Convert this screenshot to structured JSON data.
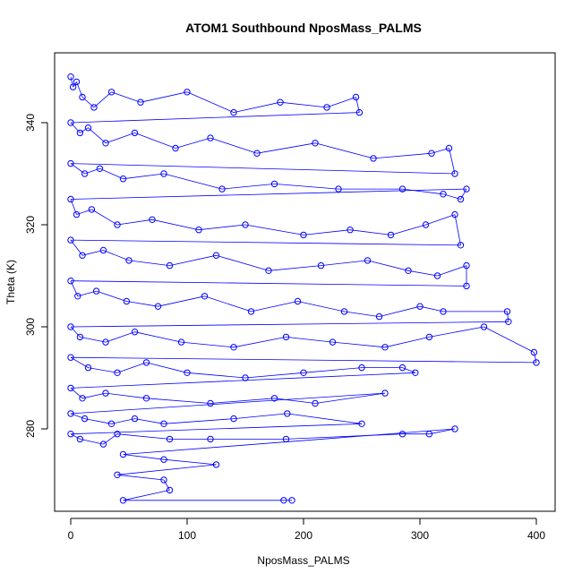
{
  "chart_data": {
    "type": "scatter",
    "title": "ATOM1 Southbound NposMass_PALMS",
    "xlabel": "NposMass_PALMS",
    "ylabel": "Theta (K)",
    "xlim": [
      -10,
      410
    ],
    "ylim": [
      262,
      352
    ],
    "xticks": [
      0,
      100,
      200,
      300,
      400
    ],
    "yticks": [
      280,
      300,
      320,
      340
    ],
    "point_style": "open-circle-with-connecting-lines",
    "color": "#0000ff",
    "series": [
      {
        "values_xy": [
          [
            0,
            349
          ],
          [
            2,
            347
          ],
          [
            5,
            348
          ],
          [
            10,
            345
          ],
          [
            20,
            343
          ],
          [
            35,
            346
          ],
          [
            60,
            344
          ],
          [
            100,
            346
          ],
          [
            140,
            342
          ],
          [
            180,
            344
          ],
          [
            220,
            343
          ],
          [
            245,
            345
          ],
          [
            248,
            342
          ],
          [
            0,
            340
          ],
          [
            8,
            338
          ],
          [
            15,
            339
          ],
          [
            30,
            336
          ],
          [
            55,
            338
          ],
          [
            90,
            335
          ],
          [
            120,
            337
          ],
          [
            160,
            334
          ],
          [
            210,
            336
          ],
          [
            260,
            333
          ],
          [
            310,
            334
          ],
          [
            325,
            335
          ],
          [
            330,
            330
          ],
          [
            0,
            332
          ],
          [
            12,
            330
          ],
          [
            25,
            331
          ],
          [
            45,
            329
          ],
          [
            80,
            330
          ],
          [
            130,
            327
          ],
          [
            175,
            328
          ],
          [
            230,
            327
          ],
          [
            285,
            327
          ],
          [
            320,
            326
          ],
          [
            335,
            325
          ],
          [
            340,
            327
          ],
          [
            0,
            325
          ],
          [
            5,
            322
          ],
          [
            18,
            323
          ],
          [
            40,
            320
          ],
          [
            70,
            321
          ],
          [
            110,
            319
          ],
          [
            150,
            320
          ],
          [
            200,
            318
          ],
          [
            240,
            319
          ],
          [
            275,
            318
          ],
          [
            305,
            320
          ],
          [
            330,
            322
          ],
          [
            335,
            316
          ],
          [
            0,
            317
          ],
          [
            10,
            314
          ],
          [
            28,
            315
          ],
          [
            50,
            313
          ],
          [
            85,
            312
          ],
          [
            125,
            314
          ],
          [
            170,
            311
          ],
          [
            215,
            312
          ],
          [
            255,
            313
          ],
          [
            290,
            311
          ],
          [
            315,
            310
          ],
          [
            340,
            312
          ],
          [
            340,
            308
          ],
          [
            0,
            309
          ],
          [
            6,
            306
          ],
          [
            22,
            307
          ],
          [
            48,
            305
          ],
          [
            75,
            304
          ],
          [
            115,
            306
          ],
          [
            155,
            303
          ],
          [
            195,
            305
          ],
          [
            235,
            303
          ],
          [
            265,
            302
          ],
          [
            300,
            304
          ],
          [
            320,
            303
          ],
          [
            375,
            303
          ],
          [
            376,
            301
          ],
          [
            0,
            300
          ],
          [
            8,
            298
          ],
          [
            30,
            297
          ],
          [
            55,
            299
          ],
          [
            95,
            297
          ],
          [
            140,
            296
          ],
          [
            185,
            298
          ],
          [
            225,
            297
          ],
          [
            270,
            296
          ],
          [
            308,
            298
          ],
          [
            355,
            300
          ],
          [
            398,
            295
          ],
          [
            400,
            293
          ],
          [
            0,
            294
          ],
          [
            15,
            292
          ],
          [
            40,
            291
          ],
          [
            65,
            293
          ],
          [
            100,
            291
          ],
          [
            150,
            290
          ],
          [
            200,
            291
          ],
          [
            250,
            292
          ],
          [
            285,
            292
          ],
          [
            296,
            291
          ],
          [
            0,
            288
          ],
          [
            10,
            286
          ],
          [
            30,
            287
          ],
          [
            65,
            286
          ],
          [
            120,
            285
          ],
          [
            175,
            286
          ],
          [
            210,
            285
          ],
          [
            270,
            287
          ],
          [
            0,
            283
          ],
          [
            12,
            282
          ],
          [
            35,
            281
          ],
          [
            55,
            282
          ],
          [
            80,
            281
          ],
          [
            140,
            282
          ],
          [
            186,
            283
          ],
          [
            250,
            281
          ],
          [
            0,
            279
          ],
          [
            8,
            278
          ],
          [
            28,
            277
          ],
          [
            40,
            279
          ],
          [
            85,
            278
          ],
          [
            120,
            278
          ],
          [
            185,
            278
          ],
          [
            285,
            279
          ],
          [
            308,
            279
          ],
          [
            330,
            280
          ],
          [
            45,
            275
          ],
          [
            80,
            274
          ],
          [
            125,
            273
          ],
          [
            40,
            271
          ],
          [
            80,
            270
          ],
          [
            85,
            268
          ],
          [
            45,
            266
          ],
          [
            183,
            266
          ],
          [
            190,
            266
          ]
        ]
      }
    ]
  }
}
